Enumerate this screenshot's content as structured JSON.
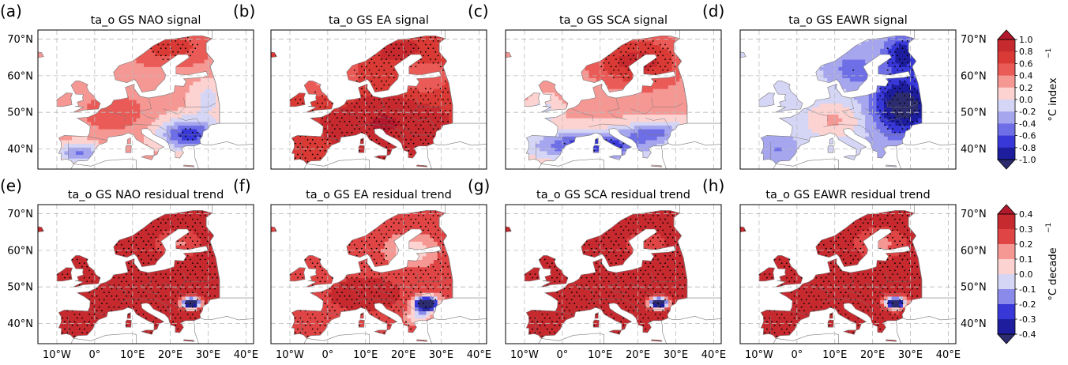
{
  "panels": [
    {
      "id": "a",
      "letter": "(a)",
      "title": "ta_o GS  NAO signal",
      "kind": "signal",
      "pattern": "nao"
    },
    {
      "id": "b",
      "letter": "(b)",
      "title": "ta_o GS EA signal",
      "kind": "signal",
      "pattern": "ea"
    },
    {
      "id": "c",
      "letter": "(c)",
      "title": "ta_o GS SCA signal",
      "kind": "signal",
      "pattern": "sca"
    },
    {
      "id": "d",
      "letter": "(d)",
      "title": "ta_o GS EAWR signal",
      "kind": "signal",
      "pattern": "eawr"
    },
    {
      "id": "e",
      "letter": "(e)",
      "title": "ta_o GS NAO residual trend",
      "kind": "trend",
      "pattern": "trend_nao"
    },
    {
      "id": "f",
      "letter": "(f)",
      "title": "ta_o GS EA residual trend",
      "kind": "trend",
      "pattern": "trend_ea"
    },
    {
      "id": "g",
      "letter": "(g)",
      "title": "ta_o GS SCA residual trend",
      "kind": "trend",
      "pattern": "trend_sca"
    },
    {
      "id": "h",
      "letter": "(h)",
      "title": "ta_o GS EAWR residual trend",
      "kind": "trend",
      "pattern": "trend_eawr"
    }
  ],
  "lat_labels": [
    "70°N",
    "60°N",
    "50°N",
    "40°N"
  ],
  "lon_labels": [
    "10°W",
    "0°",
    "10°E",
    "20°E",
    "30°E",
    "40°E"
  ],
  "colorbars": [
    {
      "id": "signal",
      "label": "°C index",
      "exponent": "−1",
      "tick_labels": [
        "1.0",
        "0.8",
        "0.6",
        "0.4",
        "0.2",
        "0.0",
        "-0.2",
        "-0.4",
        "-0.6",
        "-0.8",
        "-1.0"
      ],
      "colors": [
        "#b2182b",
        "#c62a2f",
        "#d93a35",
        "#ea5b57",
        "#f59894",
        "#fcd3d1",
        "#d5d5f5",
        "#a6a6ef",
        "#6e6ee6",
        "#3838d8",
        "#1d1d9e",
        "#2c2c6e"
      ]
    },
    {
      "id": "trend",
      "label": "°C decade",
      "exponent": "−1",
      "tick_labels": [
        "0.4",
        "0.3",
        "0.2",
        "0.1",
        "0.0",
        "-0.1",
        "-0.2",
        "-0.3",
        "-0.4"
      ],
      "colors": [
        "#b2182b",
        "#c62a2f",
        "#e04545",
        "#f59894",
        "#fcd3d1",
        "#d5d5f5",
        "#8a8aea",
        "#3838d8",
        "#1d1d9e",
        "#2c2c6e"
      ]
    }
  ],
  "colors": {
    "land_outline": "#777777",
    "grid": "#bbbbbb",
    "sea": "#ffffff",
    "stipple": "#000000"
  }
}
